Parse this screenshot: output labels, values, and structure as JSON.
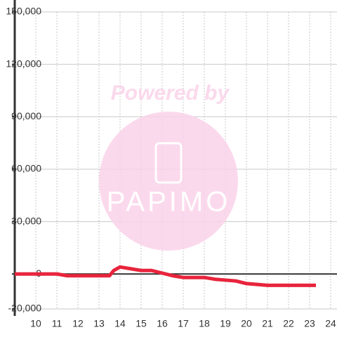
{
  "chart_data": {
    "type": "line",
    "watermark": {
      "top": "Powered by",
      "logo": "PAPIMO"
    },
    "xlim": [
      9,
      24.3
    ],
    "xticks": [
      10,
      11,
      12,
      13,
      14,
      15,
      16,
      17,
      18,
      19,
      20,
      21,
      22,
      23,
      24
    ],
    "ylim": [
      -20000,
      150000
    ],
    "yticks": [
      {
        "value": -20000,
        "label": "-20,000"
      },
      0,
      {
        "value": 30000,
        "label": "30,000"
      },
      {
        "value": 60000,
        "label": "60,000"
      },
      {
        "value": 90000,
        "label": "90,000"
      },
      {
        "value": 120000,
        "label": "120,000"
      },
      {
        "value": 150000,
        "label": "150,000"
      }
    ],
    "grid": true,
    "series": [
      {
        "color": "#e8243c",
        "x": [
          9,
          11,
          11.5,
          13.5,
          13.7,
          14,
          14.5,
          15,
          15.5,
          16,
          16.5,
          17,
          18,
          18.5,
          19,
          19.5,
          20,
          20.5,
          21,
          23.3
        ],
        "values": [
          0,
          0,
          -1000,
          -1000,
          2000,
          4000,
          3000,
          2000,
          2000,
          500,
          -1000,
          -2000,
          -2000,
          -3000,
          -3500,
          -4000,
          -5500,
          -6000,
          -6500,
          -6500
        ]
      }
    ]
  }
}
